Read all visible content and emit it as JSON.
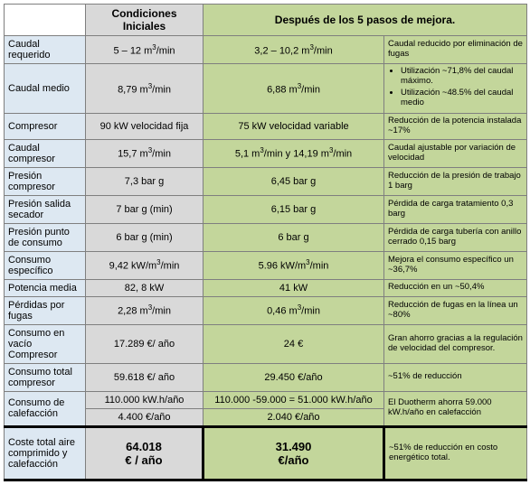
{
  "header": {
    "blank": "",
    "initial": "Condiciones Iniciales",
    "after": "Después de los 5 pasos de mejora."
  },
  "rows": [
    {
      "label": "Caudal requerido",
      "initial": "5 – 12 m³/min",
      "after": "3,2 – 10,2 m³/min",
      "note": "Caudal reducido por eliminación de fugas"
    },
    {
      "label": "Caudal medio",
      "initial": "8,79 m³/min",
      "after": "6,88 m³/min",
      "note_list": [
        "Utilización ~71,8% del caudal máximo.",
        "Utilización ~48.5% del caudal medio"
      ]
    },
    {
      "label": "Compresor",
      "initial": "90 kW velocidad fija",
      "after": "75 kW velocidad variable",
      "note": "Reducción de la potencia instalada ~17%"
    },
    {
      "label": "Caudal compresor",
      "initial": "15,7 m³/min",
      "after": "5,1 m³/min y 14,19 m³/min",
      "note": "Caudal ajustable por variación de velocidad"
    },
    {
      "label": "Presión compresor",
      "initial": "7,3 bar g",
      "after": "6,45 bar g",
      "note": "Reducción de la presión de trabajo 1 barg"
    },
    {
      "label": "Presión salida secador",
      "initial": "7 bar g (min)",
      "after": "6,15 bar g",
      "note": "Pérdida de carga tratamiento 0,3 barg"
    },
    {
      "label": "Presión punto de consumo",
      "initial": "6 bar g (min)",
      "after": "6 bar g",
      "note": "Pérdida de carga tubería con anillo cerrado 0,15 barg"
    },
    {
      "label": "Consumo específico",
      "initial": "9,42 kW/m³/min",
      "after": "5.96 kW/m³/min",
      "note": "Mejora el consumo específico un ~36,7%"
    },
    {
      "label": "Potencia media",
      "initial": "82, 8 kW",
      "after": "41 kW",
      "note": "Reducción en un ~50,4%"
    },
    {
      "label": "Pérdidas por fugas",
      "initial": "2,28 m³/min",
      "after": "0,46 m³/min",
      "note": "Reducción de fugas en la línea un ~80%"
    },
    {
      "label": "Consumo en vacío Compresor",
      "initial": "17.289 €/ año",
      "after": "24 €",
      "note": "Gran ahorro gracias a la regulación de velocidad del compresor."
    },
    {
      "label": "Consumo total compresor",
      "initial": "59.618 €/ año",
      "after": "29.450 €/año",
      "note": "~51% de reducción"
    }
  ],
  "heating": {
    "label": "Consumo de calefacción",
    "initial_top": "110.000 kW.h/año",
    "after_top": "110.000 -59.000 = 51.000 kW.h/año",
    "note": "El Duotherm ahorra 59.000 kW.h/año en calefacción",
    "initial_bot": "4.400 €/año",
    "after_bot": "2.040 €/año"
  },
  "total": {
    "label": "Coste total aire comprimido y calefacción",
    "initial_val": "64.018",
    "initial_unit": "€ / año",
    "after_val": "31.490",
    "after_unit": "€/año",
    "note": "~51% de reducción en costo energético total."
  }
}
